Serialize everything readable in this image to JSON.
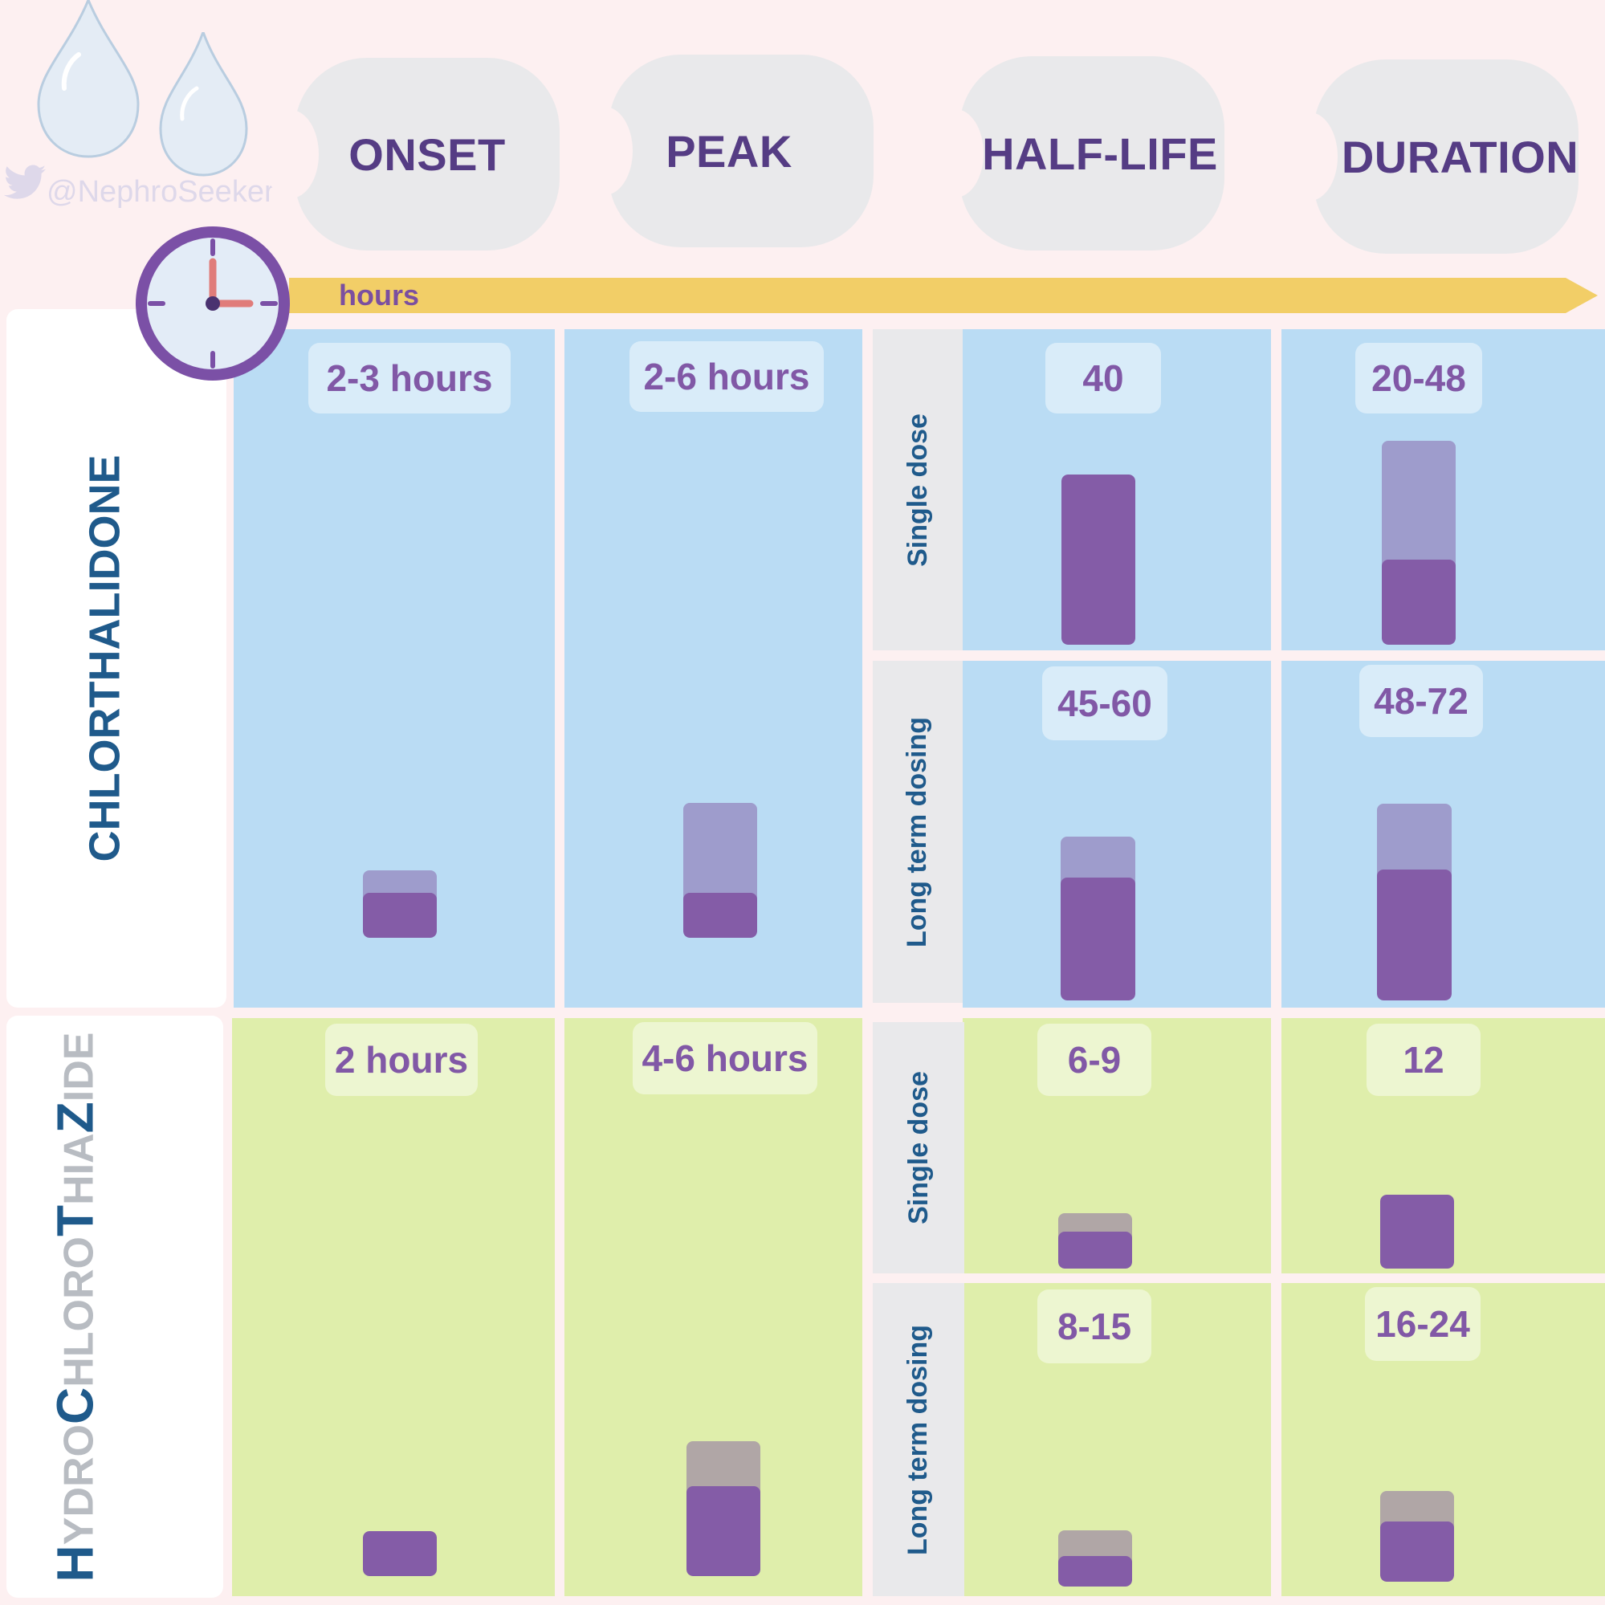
{
  "watermark": "@NephroSeeker",
  "icons": {
    "twitter": "twitter-bird-icon",
    "drop": "water-drop-icon",
    "clock": "clock-icon"
  },
  "colors": {
    "accent": "#845ca7",
    "range": "#9e9ccc",
    "range_hct": "#b0a6a6",
    "chlor_bg": "#badcf4",
    "hct_bg": "#dfeeab",
    "axis": "#f2ce67"
  },
  "headers": {
    "onset": "ONSET",
    "peak": "PEAK",
    "half_life": "HALF-LIFE",
    "duration": "DURATION"
  },
  "axis_label": "hours",
  "dose_labels": {
    "single": "Single dose",
    "long": "Long term dosing"
  },
  "drug_names": {
    "chlorthalidone": "CHLORTHALIDONE",
    "hydrochlorothiazide": [
      {
        "text": "H",
        "style": "dark"
      },
      {
        "text": "YDRO",
        "style": "light"
      },
      {
        "text": "C",
        "style": "dark"
      },
      {
        "text": "HLORO",
        "style": "light"
      },
      {
        "text": "T",
        "style": "dark"
      },
      {
        "text": "HIA",
        "style": "light"
      },
      {
        "text": "Z",
        "style": "dark"
      },
      {
        "text": "IDE",
        "style": "light"
      }
    ]
  },
  "chart_data": {
    "type": "bar",
    "unit": "hours",
    "drugs": [
      "CHLORTHALIDONE",
      "HYDROCHLOROTHIAZIDE"
    ],
    "columns": [
      "ONSET",
      "PEAK",
      "HALF-LIFE",
      "DURATION"
    ],
    "cells": {
      "chlor_onset": {
        "label": "2-3 hours",
        "min": 2,
        "max": 3
      },
      "chlor_peak": {
        "label": "2-6 hours",
        "min": 2,
        "max": 6
      },
      "chlor_half_single": {
        "label": "40",
        "min": 40,
        "max": 40
      },
      "chlor_dur_single": {
        "label": "20-48",
        "min": 20,
        "max": 48
      },
      "chlor_half_long": {
        "label": "45-60",
        "min": 45,
        "max": 60
      },
      "chlor_dur_long": {
        "label": "48-72",
        "min": 48,
        "max": 72
      },
      "hct_onset": {
        "label": "2 hours",
        "min": 2,
        "max": 2
      },
      "hct_peak": {
        "label": "4-6 hours",
        "min": 4,
        "max": 6
      },
      "hct_half_single": {
        "label": "6-9",
        "min": 6,
        "max": 9
      },
      "hct_dur_single": {
        "label": "12",
        "min": 12,
        "max": 12
      },
      "hct_half_long": {
        "label": "8-15",
        "min": 8,
        "max": 15
      },
      "hct_dur_long": {
        "label": "16-24",
        "min": 16,
        "max": 24
      }
    }
  }
}
